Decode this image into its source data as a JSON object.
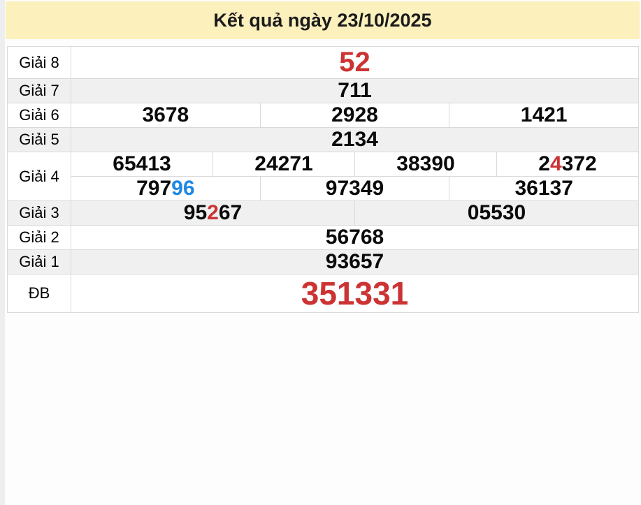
{
  "header": {
    "title": "Kết quả ngày 23/10/2025"
  },
  "colors": {
    "header_bg": "#fcf0bd",
    "row_alt_bg": "#f0f0f0",
    "border": "#d9d9d9",
    "number_red": "#cc3333",
    "number_blue": "#1e88e5"
  },
  "table": {
    "rows": [
      {
        "id": "giai-8",
        "label": "Giải 8",
        "size": "large",
        "lines": [
          [
            [
              {
                "t": "52",
                "s": "red"
              }
            ]
          ]
        ]
      },
      {
        "id": "giai-7",
        "label": "Giải 7",
        "lines": [
          [
            [
              {
                "t": "711"
              }
            ]
          ]
        ]
      },
      {
        "id": "giai-6",
        "label": "Giải 6",
        "lines": [
          [
            [
              {
                "t": "3678"
              }
            ],
            [
              {
                "t": "2928"
              }
            ],
            [
              {
                "t": "1421"
              }
            ]
          ]
        ]
      },
      {
        "id": "giai-5",
        "label": "Giải 5",
        "lines": [
          [
            [
              {
                "t": "2134"
              }
            ]
          ]
        ]
      },
      {
        "id": "giai-4",
        "label": "Giải 4",
        "lines": [
          [
            [
              {
                "t": "65413"
              }
            ],
            [
              {
                "t": "24271"
              }
            ],
            [
              {
                "t": "38390"
              }
            ],
            [
              {
                "t": "2"
              },
              {
                "t": "4",
                "s": "red"
              },
              {
                "t": "372"
              }
            ]
          ],
          [
            [
              {
                "t": "797"
              },
              {
                "t": "96",
                "s": "blue"
              }
            ],
            [
              {
                "t": "97349"
              }
            ],
            [
              {
                "t": "36137"
              }
            ]
          ]
        ]
      },
      {
        "id": "giai-3",
        "label": "Giải 3",
        "lines": [
          [
            [
              {
                "t": "95"
              },
              {
                "t": "2",
                "s": "red"
              },
              {
                "t": "67"
              }
            ],
            [
              {
                "t": "05530"
              }
            ]
          ]
        ]
      },
      {
        "id": "giai-2",
        "label": "Giải 2",
        "lines": [
          [
            [
              {
                "t": "56768"
              }
            ]
          ]
        ]
      },
      {
        "id": "giai-1",
        "label": "Giải 1",
        "lines": [
          [
            [
              {
                "t": "93657"
              }
            ]
          ]
        ]
      },
      {
        "id": "db",
        "label": "ĐB",
        "size": "xlarge",
        "lines": [
          [
            [
              {
                "t": "351331",
                "s": "red"
              }
            ]
          ]
        ]
      }
    ]
  }
}
